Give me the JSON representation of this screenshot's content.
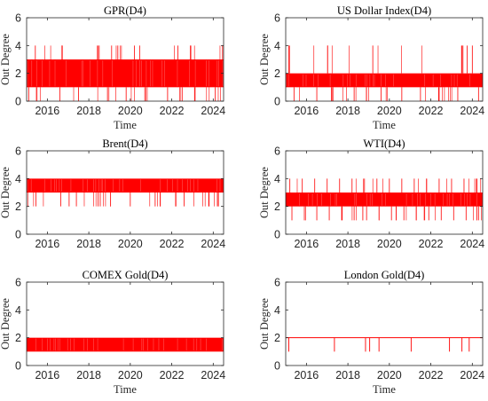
{
  "figure": {
    "bg_color": "#ffffff",
    "series_color": "#ff0000",
    "axis_color": "#262626"
  },
  "chart_data": [
    {
      "type": "line",
      "title": "GPR(D4)",
      "xlabel": "Time",
      "ylabel": "Out Degree",
      "xlim": [
        2015.0,
        2024.5
      ],
      "ylim": [
        0,
        6
      ],
      "xticks": [
        2016,
        2018,
        2020,
        2022,
        2024
      ],
      "yticks": [
        0,
        2,
        4,
        6
      ],
      "grid": false,
      "pattern": "dense spikes",
      "band": [
        1,
        3
      ],
      "values_observed": [
        0,
        1,
        2,
        3,
        4
      ],
      "spikes": [
        {
          "x": 2015.42,
          "y": 4
        },
        {
          "x": 2016.72,
          "y": 4
        },
        {
          "x": 2018.5,
          "y": 4
        },
        {
          "x": 2019.1,
          "y": 4
        },
        {
          "x": 2019.4,
          "y": 4
        },
        {
          "x": 2020.2,
          "y": 4
        },
        {
          "x": 2020.45,
          "y": 4
        },
        {
          "x": 2022.3,
          "y": 4
        },
        {
          "x": 2022.9,
          "y": 4
        },
        {
          "x": 2024.45,
          "y": 4
        }
      ],
      "dips": [
        {
          "x": 2015.1,
          "y": 0
        },
        {
          "x": 2016.6,
          "y": 0
        },
        {
          "x": 2017.5,
          "y": 0
        },
        {
          "x": 2018.9,
          "y": 0
        },
        {
          "x": 2019.8,
          "y": 0
        },
        {
          "x": 2020.7,
          "y": 0
        },
        {
          "x": 2021.8,
          "y": 0
        },
        {
          "x": 2022.5,
          "y": 0
        },
        {
          "x": 2023.1,
          "y": 0
        },
        {
          "x": 2024.1,
          "y": 0
        }
      ]
    },
    {
      "type": "line",
      "title": "US Dollar Index(D4)",
      "xlabel": "Time",
      "ylabel": "Out Degree",
      "xlim": [
        2015.0,
        2024.5
      ],
      "ylim": [
        0,
        6
      ],
      "xticks": [
        2016,
        2018,
        2020,
        2022,
        2024
      ],
      "yticks": [
        0,
        2,
        4,
        6
      ],
      "grid": false,
      "pattern": "dense spikes",
      "band": [
        1,
        2
      ],
      "values_observed": [
        0,
        1,
        2,
        3,
        4
      ],
      "spikes": [
        {
          "x": 2015.15,
          "y": 4
        },
        {
          "x": 2019.2,
          "y": 4
        },
        {
          "x": 2023.55,
          "y": 4
        },
        {
          "x": 2023.75,
          "y": 4
        },
        {
          "x": 2024.0,
          "y": 4
        }
      ],
      "dips": [
        {
          "x": 2015.4,
          "y": 0
        },
        {
          "x": 2016.5,
          "y": 0
        },
        {
          "x": 2017.2,
          "y": 0
        },
        {
          "x": 2018.3,
          "y": 0
        },
        {
          "x": 2019.6,
          "y": 0
        },
        {
          "x": 2020.6,
          "y": 0
        },
        {
          "x": 2021.5,
          "y": 0
        },
        {
          "x": 2022.4,
          "y": 0
        },
        {
          "x": 2023.3,
          "y": 0
        },
        {
          "x": 2024.3,
          "y": 0
        }
      ]
    },
    {
      "type": "line",
      "title": "Brent(D4)",
      "xlabel": "",
      "ylabel": "Out Degree",
      "xlim": [
        2015.0,
        2024.5
      ],
      "ylim": [
        0,
        6
      ],
      "xticks": [
        2016,
        2018,
        2020,
        2022,
        2024
      ],
      "yticks": [
        0,
        2,
        4,
        6
      ],
      "grid": false,
      "pattern": "dense spikes",
      "band": [
        3,
        4
      ],
      "values_observed": [
        2,
        3,
        4
      ],
      "spikes": [],
      "dips": [
        {
          "x": 2015.45,
          "y": 2
        },
        {
          "x": 2016.65,
          "y": 2
        },
        {
          "x": 2017.05,
          "y": 2
        },
        {
          "x": 2017.4,
          "y": 2
        },
        {
          "x": 2018.45,
          "y": 2
        },
        {
          "x": 2018.55,
          "y": 2
        },
        {
          "x": 2019.05,
          "y": 2
        },
        {
          "x": 2020.0,
          "y": 2
        },
        {
          "x": 2021.2,
          "y": 2
        },
        {
          "x": 2021.45,
          "y": 2
        },
        {
          "x": 2022.2,
          "y": 2
        },
        {
          "x": 2022.6,
          "y": 2
        },
        {
          "x": 2023.8,
          "y": 2
        },
        {
          "x": 2024.2,
          "y": 2
        },
        {
          "x": 2024.25,
          "y": 2
        }
      ]
    },
    {
      "type": "line",
      "title": "WTI(D4)",
      "xlabel": "",
      "ylabel": "Out Degree",
      "xlim": [
        2015.0,
        2024.5
      ],
      "ylim": [
        0,
        6
      ],
      "xticks": [
        2016,
        2018,
        2020,
        2022,
        2024
      ],
      "yticks": [
        0,
        2,
        4,
        6
      ],
      "grid": false,
      "pattern": "dense spikes",
      "band": [
        2,
        3
      ],
      "values_observed": [
        1,
        2,
        3,
        4
      ],
      "spikes": [
        {
          "x": 2015.2,
          "y": 4
        },
        {
          "x": 2015.8,
          "y": 4
        },
        {
          "x": 2016.4,
          "y": 4
        },
        {
          "x": 2017.0,
          "y": 4
        },
        {
          "x": 2017.6,
          "y": 4
        },
        {
          "x": 2018.2,
          "y": 4
        },
        {
          "x": 2018.8,
          "y": 4
        },
        {
          "x": 2019.4,
          "y": 4
        },
        {
          "x": 2020.0,
          "y": 4
        },
        {
          "x": 2020.6,
          "y": 4
        },
        {
          "x": 2021.2,
          "y": 4
        },
        {
          "x": 2021.8,
          "y": 4
        },
        {
          "x": 2022.4,
          "y": 4
        },
        {
          "x": 2023.0,
          "y": 4
        },
        {
          "x": 2023.6,
          "y": 4
        },
        {
          "x": 2024.2,
          "y": 4
        }
      ],
      "dips": [
        {
          "x": 2015.3,
          "y": 1
        },
        {
          "x": 2015.9,
          "y": 1
        },
        {
          "x": 2016.5,
          "y": 1
        },
        {
          "x": 2017.1,
          "y": 1
        },
        {
          "x": 2017.7,
          "y": 1
        },
        {
          "x": 2018.3,
          "y": 1
        },
        {
          "x": 2018.9,
          "y": 1
        },
        {
          "x": 2019.5,
          "y": 1
        },
        {
          "x": 2020.1,
          "y": 1
        },
        {
          "x": 2020.7,
          "y": 1
        },
        {
          "x": 2021.3,
          "y": 1
        },
        {
          "x": 2021.9,
          "y": 1
        },
        {
          "x": 2022.5,
          "y": 1
        },
        {
          "x": 2023.1,
          "y": 1
        },
        {
          "x": 2023.7,
          "y": 1
        },
        {
          "x": 2024.3,
          "y": 1
        }
      ]
    },
    {
      "type": "line",
      "title": "COMEX Gold(D4)",
      "xlabel": "Time",
      "ylabel": "Out Degree",
      "xlim": [
        2015.0,
        2024.5
      ],
      "ylim": [
        0,
        6
      ],
      "xticks": [
        2016,
        2018,
        2020,
        2022,
        2024
      ],
      "yticks": [
        0,
        2,
        4,
        6
      ],
      "grid": false,
      "pattern": "dense spikes",
      "band": [
        1,
        2
      ],
      "values_observed": [
        1,
        2
      ],
      "spikes": [],
      "dips": []
    },
    {
      "type": "line",
      "title": "London Gold(D4)",
      "xlabel": "Time",
      "ylabel": "Out Degree",
      "xlim": [
        2015.0,
        2024.5
      ],
      "ylim": [
        0,
        6
      ],
      "xticks": [
        2016,
        2018,
        2020,
        2022,
        2024
      ],
      "yticks": [
        0,
        2,
        4,
        6
      ],
      "grid": false,
      "pattern": "sparse dips",
      "band": [
        2,
        2
      ],
      "values_observed": [
        1,
        2
      ],
      "spikes": [],
      "dips": [
        {
          "x": 2015.15,
          "y": 1
        },
        {
          "x": 2017.35,
          "y": 1
        },
        {
          "x": 2018.85,
          "y": 1
        },
        {
          "x": 2019.05,
          "y": 1
        },
        {
          "x": 2019.5,
          "y": 1
        },
        {
          "x": 2021.05,
          "y": 1
        },
        {
          "x": 2022.9,
          "y": 1
        },
        {
          "x": 2023.5,
          "y": 1
        },
        {
          "x": 2023.85,
          "y": 1
        }
      ]
    }
  ]
}
